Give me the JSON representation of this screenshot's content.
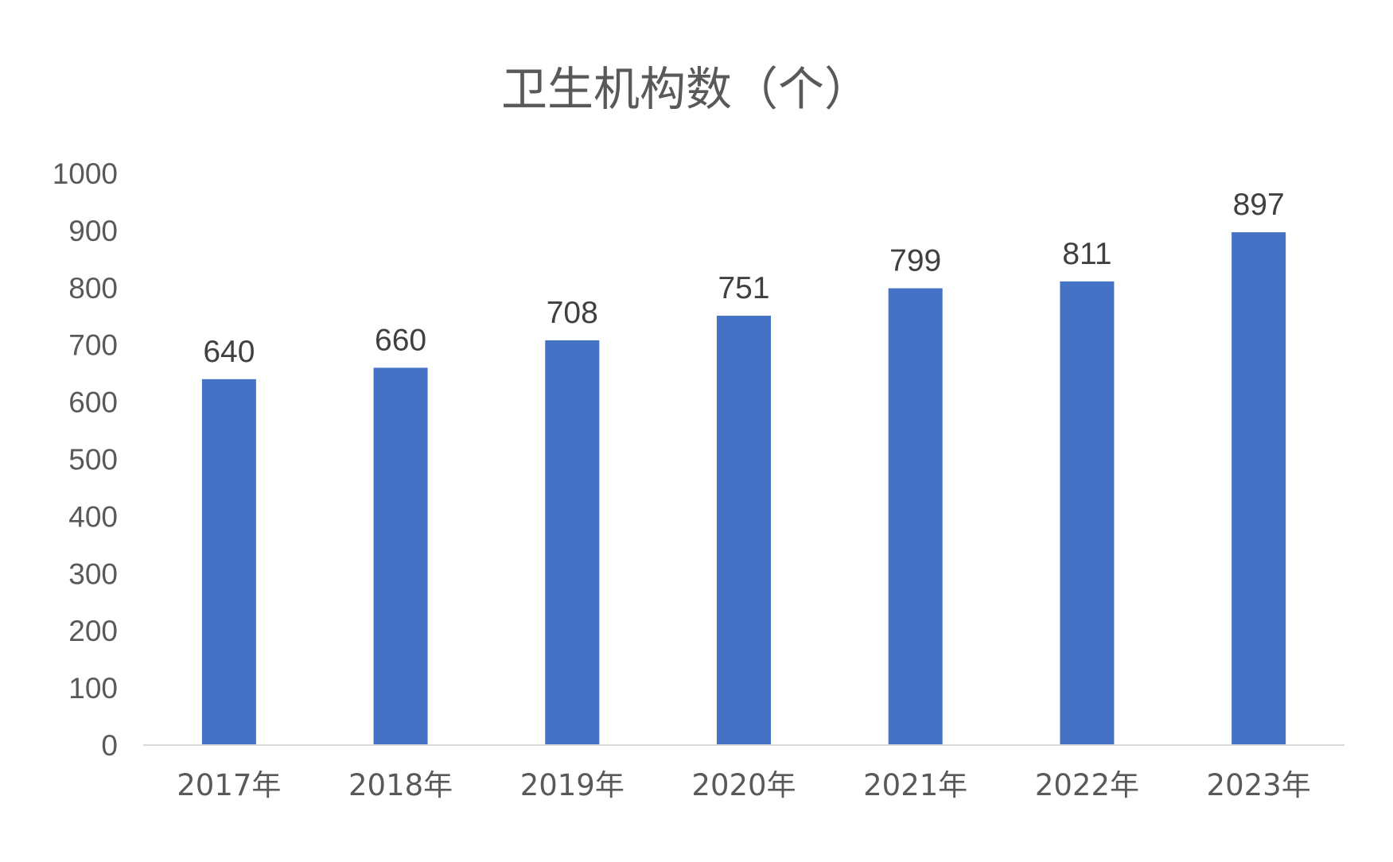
{
  "chart_data": {
    "type": "bar",
    "title": "卫生机构数（个）",
    "xlabel": "",
    "ylabel": "",
    "categories": [
      "2017年",
      "2018年",
      "2019年",
      "2020年",
      "2021年",
      "2022年",
      "2023年"
    ],
    "values": [
      640,
      660,
      708,
      751,
      799,
      811,
      897
    ],
    "data_labels": [
      "640",
      "660",
      "708",
      "751",
      "799",
      "811",
      "897"
    ],
    "ylim": [
      0,
      1000
    ],
    "yticks": [
      0,
      100,
      200,
      300,
      400,
      500,
      600,
      700,
      800,
      900,
      1000
    ],
    "ytick_labels": [
      "0",
      "100",
      "200",
      "300",
      "400",
      "500",
      "600",
      "700",
      "800",
      "900",
      "1000"
    ],
    "grid": false,
    "legend": "none",
    "bar_color": "#4472C4"
  }
}
